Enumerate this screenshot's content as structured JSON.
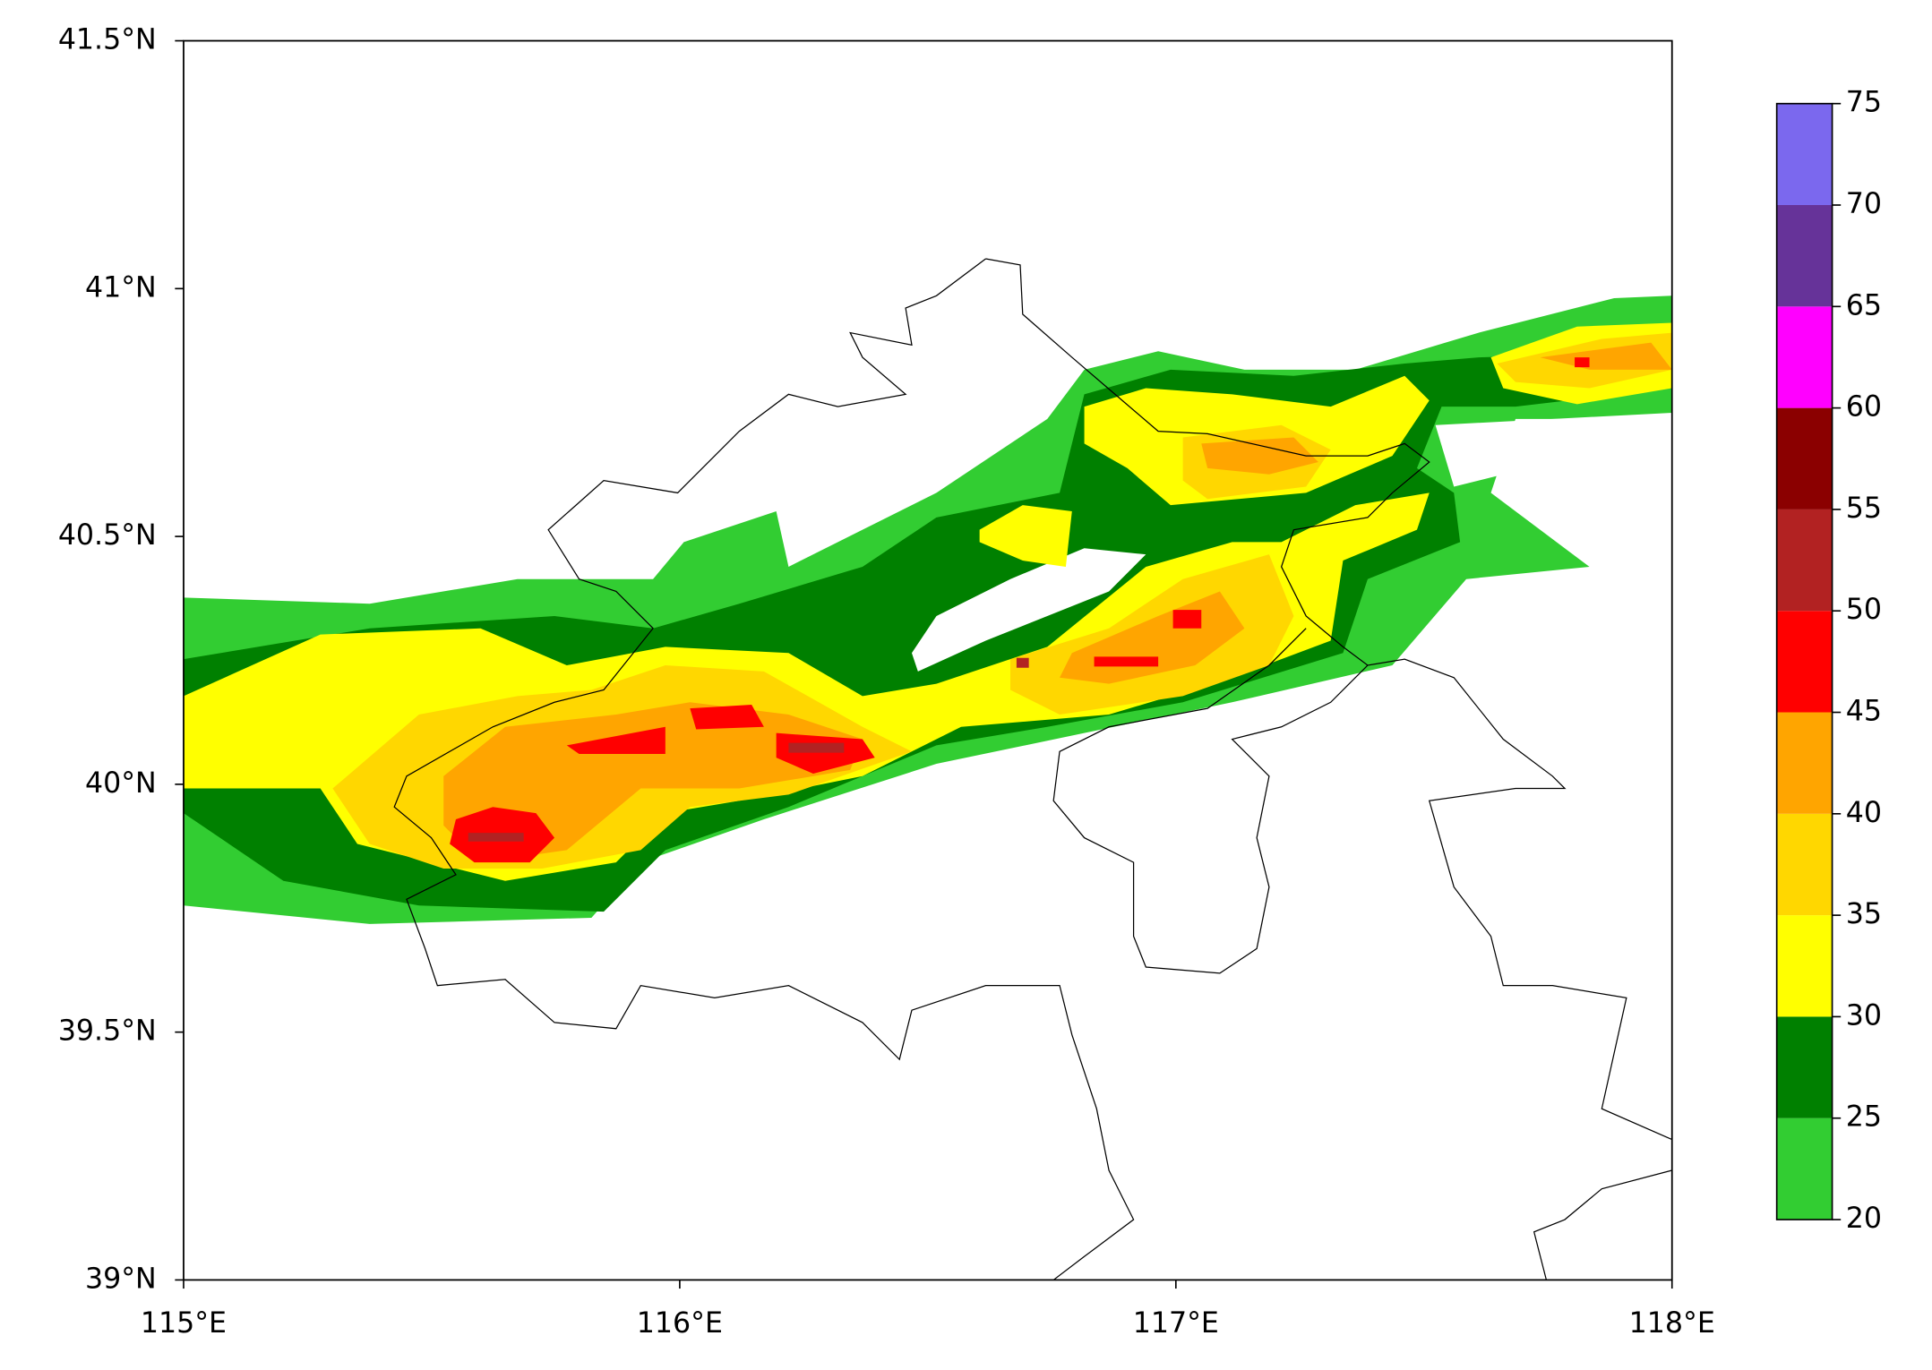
{
  "chart_data": {
    "type": "map",
    "xlim": [
      115,
      118
    ],
    "ylim": [
      39,
      41.5
    ],
    "xticks": [
      {
        "value": 115,
        "label": "115°E"
      },
      {
        "value": 116,
        "label": "116°E"
      },
      {
        "value": 117,
        "label": "117°E"
      },
      {
        "value": 118,
        "label": "118°E"
      }
    ],
    "yticks": [
      {
        "value": 39,
        "label": "39°N"
      },
      {
        "value": 39.5,
        "label": "39.5°N"
      },
      {
        "value": 40,
        "label": "40°N"
      },
      {
        "value": 40.5,
        "label": "40.5°N"
      },
      {
        "value": 41,
        "label": "41°N"
      },
      {
        "value": 41.5,
        "label": "41.5°N"
      }
    ],
    "colorbar": {
      "levels": [
        20,
        25,
        30,
        35,
        40,
        45,
        50,
        55,
        60,
        65,
        70,
        75
      ],
      "colors": [
        "#32cd32",
        "#008000",
        "#ffff00",
        "#ffd700",
        "#ffa500",
        "#ff0000",
        "#b22222",
        "#8b0000",
        "#ff00ff",
        "#663399",
        "#7b68ee"
      ]
    }
  }
}
